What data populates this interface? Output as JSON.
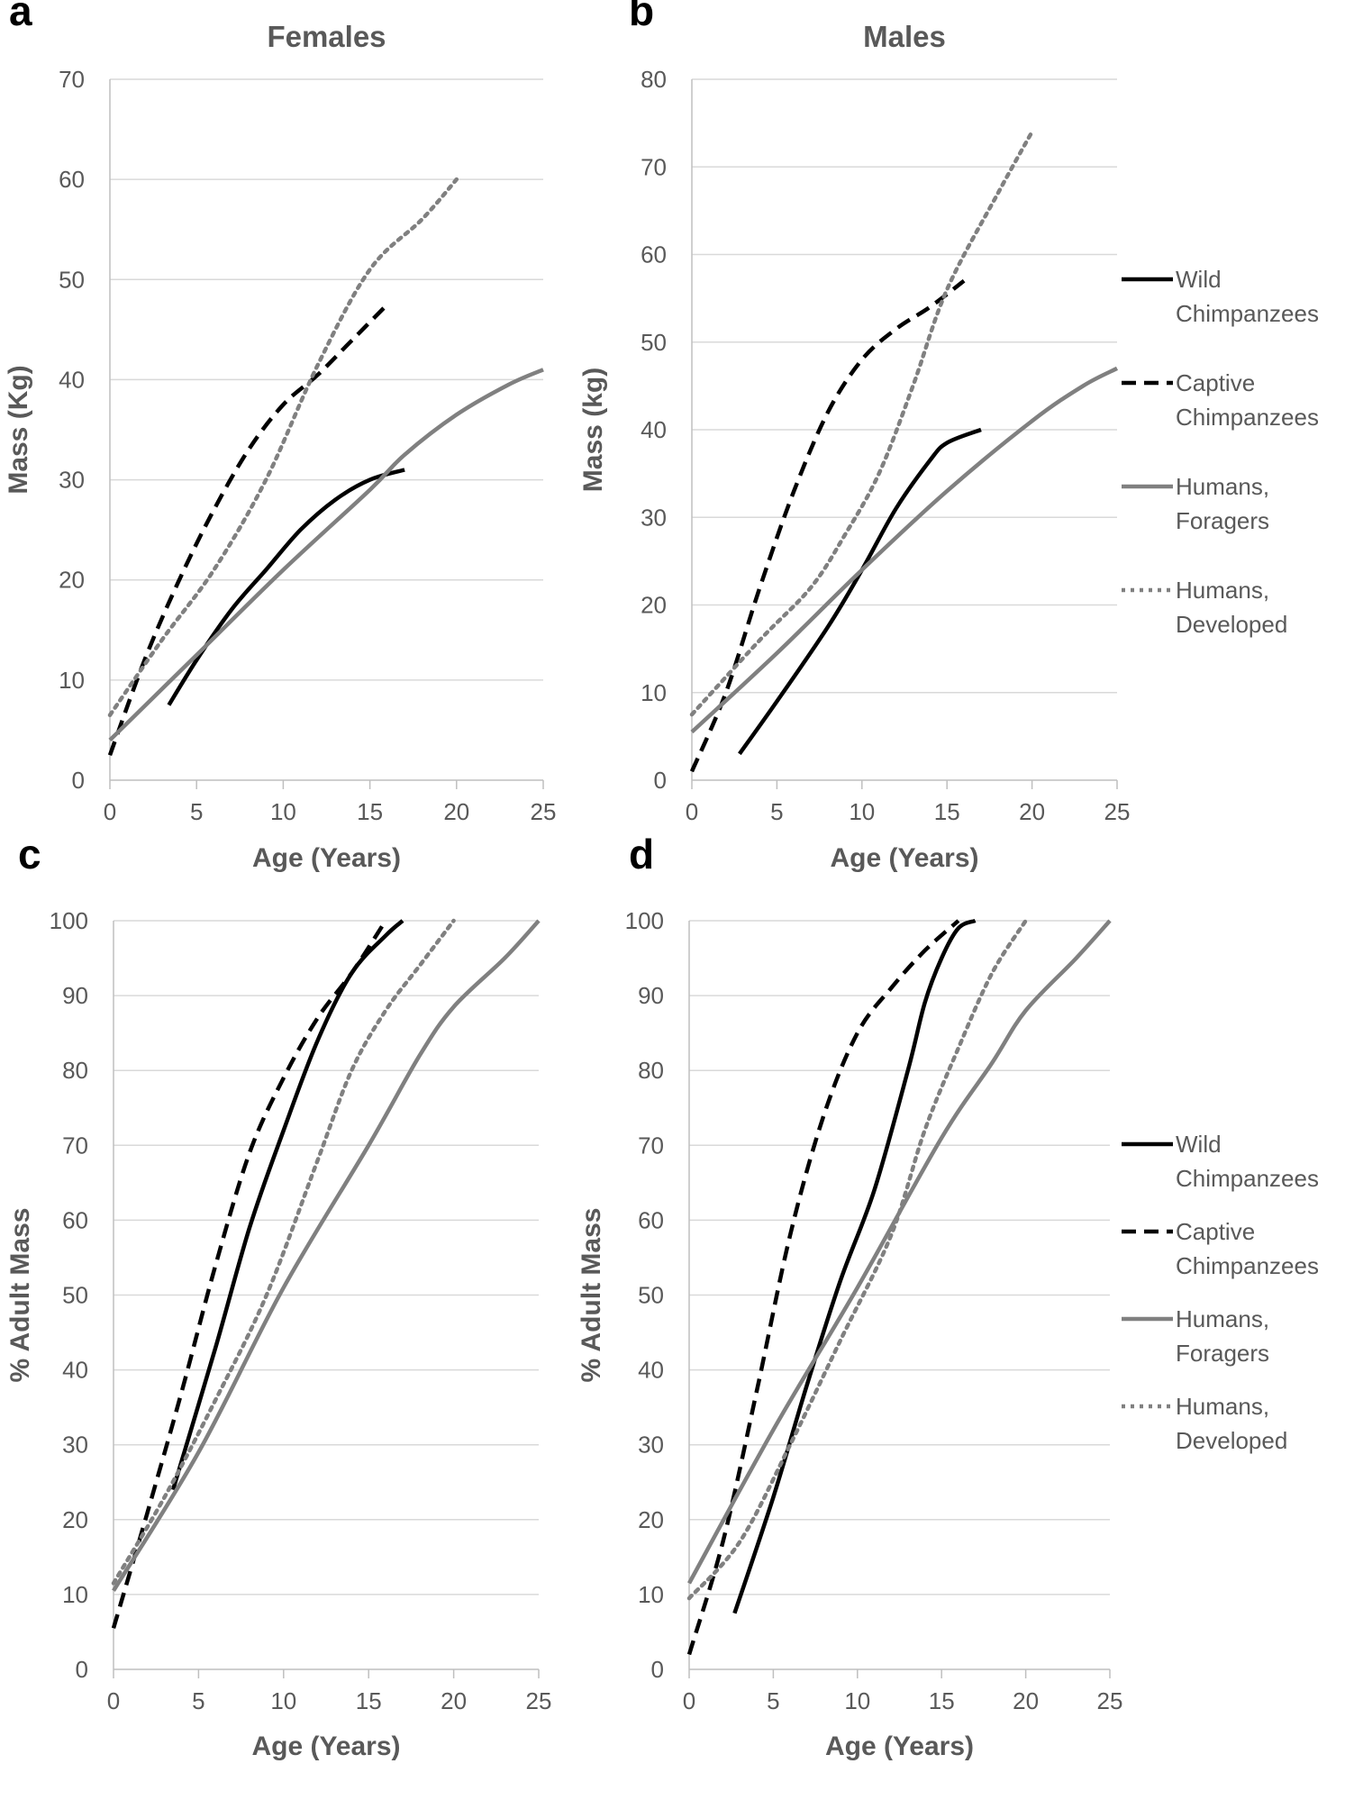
{
  "chart_data": [
    {
      "type": "line",
      "panel": "a",
      "title": "Females",
      "xlabel": "Age (Years)",
      "ylabel": "Mass (Kg)",
      "xlim": [
        0,
        25
      ],
      "ylim": [
        0,
        70
      ],
      "xticks": [
        0,
        5,
        10,
        15,
        20,
        25
      ],
      "yticks": [
        0,
        10,
        20,
        30,
        40,
        50,
        60,
        70
      ],
      "grid": true,
      "legend": null,
      "series": [
        {
          "name": "Wild Chimpanzees",
          "style": "solid",
          "color": "#000000",
          "points": [
            [
              3.4,
              7.5
            ],
            [
              5,
              12
            ],
            [
              7,
              17
            ],
            [
              9,
              21
            ],
            [
              11,
              25
            ],
            [
              13,
              28
            ],
            [
              15,
              30
            ],
            [
              17,
              31
            ]
          ]
        },
        {
          "name": "Captive Chimpanzees",
          "style": "dashed",
          "color": "#000000",
          "points": [
            [
              0,
              2.5
            ],
            [
              2,
              12
            ],
            [
              4,
              20
            ],
            [
              6,
              27
            ],
            [
              8,
              33
            ],
            [
              10,
              37.5
            ],
            [
              12,
              40.5
            ],
            [
              14,
              44
            ],
            [
              16,
              47.5
            ]
          ]
        },
        {
          "name": "Humans, Foragers",
          "style": "solid",
          "color": "#808080",
          "points": [
            [
              0,
              4
            ],
            [
              5,
              12.5
            ],
            [
              10,
              21
            ],
            [
              15,
              29
            ],
            [
              17,
              32.5
            ],
            [
              20,
              36.5
            ],
            [
              23,
              39.5
            ],
            [
              25,
              41
            ]
          ]
        },
        {
          "name": "Humans, Developed",
          "style": "dotted",
          "color": "#808080",
          "points": [
            [
              0,
              6.5
            ],
            [
              3,
              14
            ],
            [
              6,
              21
            ],
            [
              9,
              30
            ],
            [
              12,
              41.5
            ],
            [
              15,
              51
            ],
            [
              18,
              56
            ],
            [
              20,
              60
            ]
          ]
        }
      ]
    },
    {
      "type": "line",
      "panel": "b",
      "title": "Males",
      "xlabel": "Age (Years)",
      "ylabel": "Mass (kg)",
      "xlim": [
        0,
        25
      ],
      "ylim": [
        0,
        80
      ],
      "xticks": [
        0,
        5,
        10,
        15,
        20,
        25
      ],
      "yticks": [
        0,
        10,
        20,
        30,
        40,
        50,
        60,
        70,
        80
      ],
      "grid": true,
      "legend": [
        "Wild Chimpanzees",
        "Captive Chimpanzees",
        "Humans, Foragers",
        "Humans, Developed"
      ],
      "series": [
        {
          "name": "Wild Chimpanzees",
          "style": "solid",
          "color": "#000000",
          "points": [
            [
              2.8,
              3
            ],
            [
              5,
              9
            ],
            [
              8,
              17.5
            ],
            [
              10,
              24
            ],
            [
              12,
              31
            ],
            [
              14,
              36.5
            ],
            [
              15,
              38.5
            ],
            [
              17,
              40
            ]
          ]
        },
        {
          "name": "Captive Chimpanzees",
          "style": "dashed",
          "color": "#000000",
          "points": [
            [
              0,
              1
            ],
            [
              2,
              10
            ],
            [
              4,
              22
            ],
            [
              6,
              33
            ],
            [
              8,
              42
            ],
            [
              10,
              48
            ],
            [
              12,
              51.5
            ],
            [
              14,
              54
            ],
            [
              16,
              57
            ]
          ]
        },
        {
          "name": "Humans, Foragers",
          "style": "solid",
          "color": "#808080",
          "points": [
            [
              0,
              5.5
            ],
            [
              5,
              14.5
            ],
            [
              10,
              24
            ],
            [
              15,
              33
            ],
            [
              20,
              41
            ],
            [
              23,
              45
            ],
            [
              25,
              47
            ]
          ]
        },
        {
          "name": "Humans, Developed",
          "style": "dotted",
          "color": "#808080",
          "points": [
            [
              0,
              7.5
            ],
            [
              4,
              16
            ],
            [
              7,
              22
            ],
            [
              9,
              28
            ],
            [
              11,
              35
            ],
            [
              13,
              45
            ],
            [
              15,
              56
            ],
            [
              18,
              67
            ],
            [
              20,
              74
            ]
          ]
        }
      ]
    },
    {
      "type": "line",
      "panel": "c",
      "title": "",
      "xlabel": "Age (Years)",
      "ylabel": "% Adult Mass",
      "xlim": [
        0,
        25
      ],
      "ylim": [
        0,
        100
      ],
      "xticks": [
        0,
        5,
        10,
        15,
        20,
        25
      ],
      "yticks": [
        0,
        10,
        20,
        30,
        40,
        50,
        60,
        70,
        80,
        90,
        100
      ],
      "grid": true,
      "legend": null,
      "series": [
        {
          "name": "Wild Chimpanzees",
          "style": "solid",
          "color": "#000000",
          "points": [
            [
              3.5,
              24
            ],
            [
              6,
              43
            ],
            [
              8,
              59
            ],
            [
              10,
              72
            ],
            [
              12,
              84
            ],
            [
              14,
              93
            ],
            [
              16,
              98
            ],
            [
              17,
              100
            ]
          ]
        },
        {
          "name": "Captive Chimpanzees",
          "style": "dashed",
          "color": "#000000",
          "points": [
            [
              0,
              5.5
            ],
            [
              2,
              21
            ],
            [
              4,
              37
            ],
            [
              6,
              54
            ],
            [
              8,
              69
            ],
            [
              10,
              79
            ],
            [
              12,
              87
            ],
            [
              14,
              93
            ],
            [
              16,
              100
            ]
          ]
        },
        {
          "name": "Humans, Foragers",
          "style": "solid",
          "color": "#808080",
          "points": [
            [
              0,
              10.5
            ],
            [
              5,
              29
            ],
            [
              10,
              51
            ],
            [
              15,
              70
            ],
            [
              18,
              82
            ],
            [
              20,
              88.5
            ],
            [
              23,
              95
            ],
            [
              25,
              100
            ]
          ]
        },
        {
          "name": "Humans, Developed",
          "style": "dotted",
          "color": "#808080",
          "points": [
            [
              0,
              11.5
            ],
            [
              3,
              23
            ],
            [
              6,
              36
            ],
            [
              9,
              50
            ],
            [
              12,
              68
            ],
            [
              14,
              80
            ],
            [
              16,
              88
            ],
            [
              18,
              94
            ],
            [
              20,
              100
            ]
          ]
        }
      ]
    },
    {
      "type": "line",
      "panel": "d",
      "title": "",
      "xlabel": "Age (Years)",
      "ylabel": "% Adult Mass",
      "xlim": [
        0,
        25
      ],
      "ylim": [
        0,
        100
      ],
      "xticks": [
        0,
        5,
        10,
        15,
        20,
        25
      ],
      "yticks": [
        0,
        10,
        20,
        30,
        40,
        50,
        60,
        70,
        80,
        90,
        100
      ],
      "grid": true,
      "legend": [
        "Wild Chimpanzees",
        "Captive Chimpanzees",
        "Humans, Foragers",
        "Humans, Developed"
      ],
      "series": [
        {
          "name": "Wild Chimpanzees",
          "style": "solid",
          "color": "#000000",
          "points": [
            [
              2.7,
              7.5
            ],
            [
              5,
              23
            ],
            [
              7,
              38
            ],
            [
              9,
              52
            ],
            [
              11,
              64
            ],
            [
              13,
              80
            ],
            [
              14,
              89
            ],
            [
              15,
              95
            ],
            [
              16,
              99
            ],
            [
              17,
              100
            ]
          ]
        },
        {
          "name": "Captive Chimpanzees",
          "style": "dashed",
          "color": "#000000",
          "points": [
            [
              0,
              2
            ],
            [
              2,
              17
            ],
            [
              4,
              37
            ],
            [
              6,
              58
            ],
            [
              8,
              74
            ],
            [
              10,
              85
            ],
            [
              12,
              91
            ],
            [
              14,
              96
            ],
            [
              16,
              100
            ]
          ]
        },
        {
          "name": "Humans, Foragers",
          "style": "solid",
          "color": "#808080",
          "points": [
            [
              0,
              11.5
            ],
            [
              5,
              32
            ],
            [
              10,
              51
            ],
            [
              15,
              71
            ],
            [
              18,
              81
            ],
            [
              20,
              88
            ],
            [
              23,
              95
            ],
            [
              25,
              100
            ]
          ]
        },
        {
          "name": "Humans, Developed",
          "style": "dotted",
          "color": "#808080",
          "points": [
            [
              0,
              9.5
            ],
            [
              3,
              17
            ],
            [
              6,
              30
            ],
            [
              9,
              44
            ],
            [
              12,
              58
            ],
            [
              14,
              72
            ],
            [
              16,
              83
            ],
            [
              18,
              93
            ],
            [
              20,
              100
            ]
          ]
        }
      ]
    }
  ]
}
